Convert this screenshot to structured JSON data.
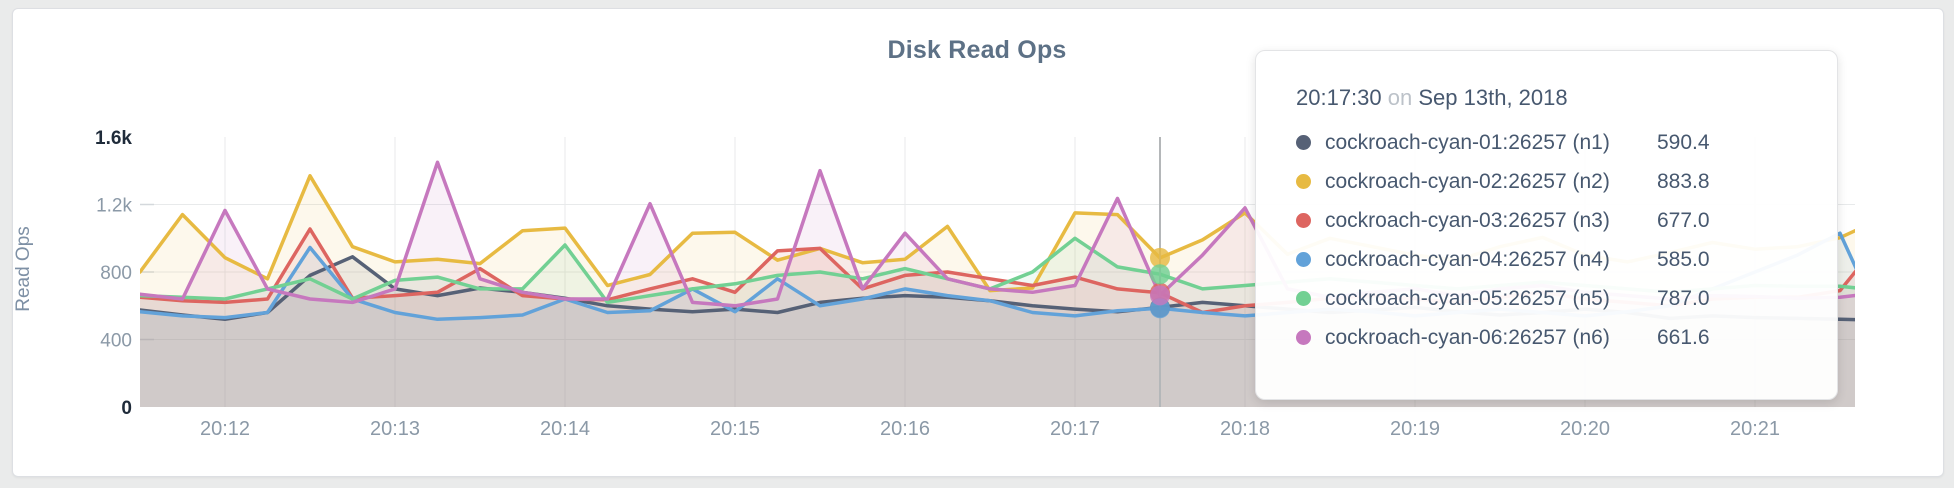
{
  "chart_data": {
    "type": "line",
    "title": "Disk Read Ops",
    "ylabel": "Read Ops",
    "ylim": [
      0,
      1600
    ],
    "grid": true,
    "x_start": "20:11:30",
    "x_step_seconds": 15,
    "x_tick_labels": [
      "20:12",
      "20:13",
      "20:14",
      "20:15",
      "20:16",
      "20:17",
      "20:18",
      "20:19",
      "20:20",
      "20:21"
    ],
    "y_ticks": [
      {
        "value": 0,
        "label": "0",
        "emphasis": true
      },
      {
        "value": 400,
        "label": "400",
        "emphasis": false
      },
      {
        "value": 800,
        "label": "800",
        "emphasis": false
      },
      {
        "value": 1200,
        "label": "1.2k",
        "emphasis": false
      },
      {
        "value": 1600,
        "label": "1.6k",
        "emphasis": true
      }
    ],
    "series": [
      {
        "name": "cockroach-cyan-01:26257 (n1)",
        "color": "#566176",
        "values": [
          575,
          545,
          520,
          560,
          780,
          890,
          700,
          660,
          705,
          680,
          645,
          600,
          580,
          565,
          580,
          560,
          620,
          645,
          660,
          650,
          630,
          600,
          580,
          565,
          590.4,
          620,
          600,
          580,
          560,
          575,
          590,
          565,
          545,
          560,
          580,
          560,
          525,
          540,
          530,
          525,
          520,
          515
        ]
      },
      {
        "name": "cockroach-cyan-02:26257 (n2)",
        "color": "#e7ba42",
        "values": [
          800,
          1140,
          885,
          760,
          1370,
          950,
          860,
          875,
          850,
          1045,
          1060,
          720,
          785,
          1030,
          1035,
          870,
          940,
          855,
          875,
          1070,
          690,
          705,
          1150,
          1140,
          883.8,
          990,
          1150,
          905,
          1000,
          950,
          900,
          870,
          950,
          1005,
          900,
          860,
          915,
          975,
          935,
          950,
          1003,
          1120
        ]
      },
      {
        "name": "cockroach-cyan-03:26257 (n3)",
        "color": "#dd6560",
        "values": [
          650,
          630,
          620,
          640,
          1055,
          645,
          660,
          680,
          820,
          660,
          640,
          635,
          700,
          760,
          680,
          925,
          940,
          700,
          780,
          800,
          760,
          720,
          770,
          700,
          677,
          560,
          600,
          620,
          645,
          660,
          640,
          620,
          650,
          680,
          640,
          620,
          600,
          640,
          650,
          650,
          690,
          1000
        ]
      },
      {
        "name": "cockroach-cyan-04:26257 (n4)",
        "color": "#62a2d9",
        "values": [
          565,
          540,
          530,
          560,
          945,
          640,
          560,
          520,
          530,
          545,
          640,
          560,
          570,
          700,
          565,
          760,
          600,
          640,
          700,
          660,
          630,
          560,
          540,
          570,
          585,
          560,
          540,
          560,
          580,
          565,
          540,
          560,
          580,
          560,
          540,
          565,
          600,
          700,
          800,
          900,
          1030,
          480
        ]
      },
      {
        "name": "cockroach-cyan-05:26257 (n5)",
        "color": "#72d093",
        "values": [
          660,
          650,
          640,
          700,
          760,
          640,
          750,
          770,
          700,
          700,
          960,
          620,
          660,
          700,
          730,
          780,
          800,
          760,
          820,
          760,
          700,
          800,
          1000,
          830,
          787,
          700,
          720,
          740,
          760,
          740,
          720,
          700,
          720,
          740,
          720,
          700,
          680,
          700,
          720,
          715,
          715,
          690
        ]
      },
      {
        "name": "cockroach-cyan-06:26257 (n6)",
        "color": "#c678be",
        "values": [
          668,
          640,
          1165,
          700,
          640,
          620,
          700,
          1450,
          760,
          680,
          640,
          640,
          1205,
          620,
          600,
          640,
          1400,
          700,
          1030,
          760,
          700,
          680,
          720,
          1236,
          661.6,
          900,
          1180,
          700,
          650,
          680,
          700,
          660,
          700,
          720,
          680,
          660,
          640,
          660,
          655,
          645,
          650,
          680
        ]
      }
    ]
  },
  "tooltip": {
    "time": "20:17:30",
    "connector": "on",
    "date": "Sep 13th, 2018",
    "crosshair_index": 24,
    "rows": [
      {
        "label": "cockroach-cyan-01:26257 (n1)",
        "value": "590.4",
        "color": "#566176"
      },
      {
        "label": "cockroach-cyan-02:26257 (n2)",
        "value": "883.8",
        "color": "#e7ba42"
      },
      {
        "label": "cockroach-cyan-03:26257 (n3)",
        "value": "677.0",
        "color": "#dd6560"
      },
      {
        "label": "cockroach-cyan-04:26257 (n4)",
        "value": "585.0",
        "color": "#62a2d9"
      },
      {
        "label": "cockroach-cyan-05:26257 (n5)",
        "value": "787.0",
        "color": "#72d093"
      },
      {
        "label": "cockroach-cyan-06:26257 (n6)",
        "value": "661.6",
        "color": "#c678be"
      }
    ]
  }
}
